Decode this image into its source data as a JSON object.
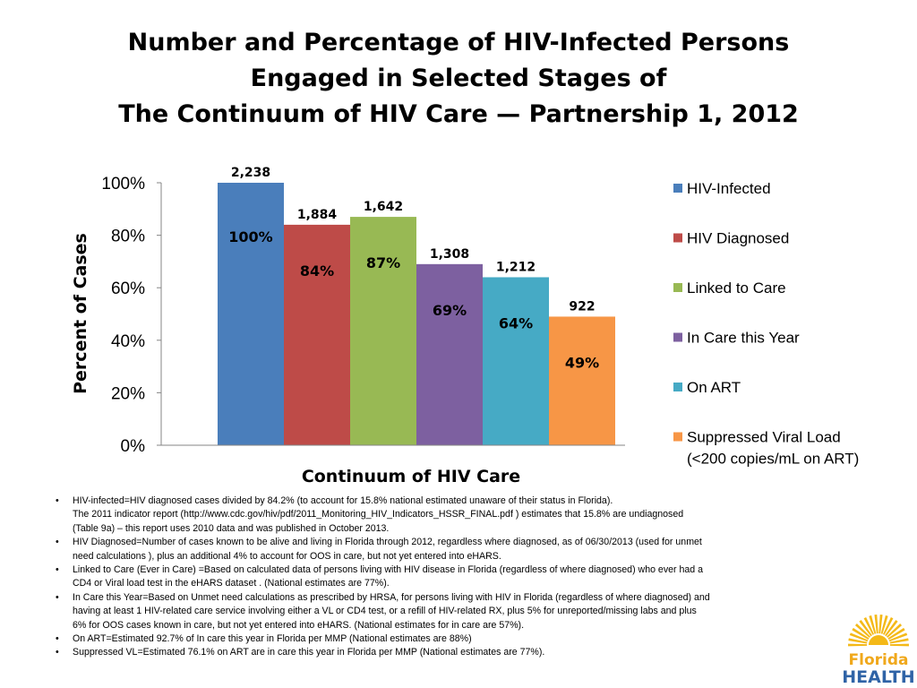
{
  "title_lines": [
    "Number and Percentage of HIV-Infected Persons",
    "Engaged in Selected Stages of",
    "The Continuum of HIV Care — Partnership 1, 2012"
  ],
  "chart_data": {
    "type": "bar",
    "categories": [
      "HIV-Infected",
      "HIV Diagnosed",
      "Linked to Care",
      "In Care this Year",
      "On ART",
      "Suppressed Viral Load (<200 copies/mL on ART)"
    ],
    "legend_labels": [
      [
        "HIV-Infected"
      ],
      [
        "HIV Diagnosed"
      ],
      [
        "Linked to Care"
      ],
      [
        "In Care this Year"
      ],
      [
        "On ART"
      ],
      [
        "Suppressed Viral Load",
        "(<200 copies/mL on ART)"
      ]
    ],
    "values": [
      100,
      84,
      87,
      69,
      64,
      49
    ],
    "value_labels": [
      "100%",
      "84%",
      "87%",
      "69%",
      "64%",
      "49%"
    ],
    "count_labels": [
      "2,238",
      "1,884",
      "1,642",
      "1,308",
      "1,212",
      "922"
    ],
    "colors": [
      "#4a7ebb",
      "#be4b48",
      "#98b954",
      "#7d60a0",
      "#46aac5",
      "#f79646"
    ],
    "xlabel": "Continuum of HIV Care",
    "ylabel": "Percent of Cases",
    "ylim": [
      0,
      100
    ],
    "yticks": [
      "0%",
      "20%",
      "40%",
      "60%",
      "80%",
      "100%"
    ],
    "grid": false,
    "legend_position": "right"
  },
  "notes": [
    [
      "HIV-infected=HIV diagnosed cases divided by 84.2% (to account for 15.8% national estimated unaware of their status in Florida).",
      "The 2011 indicator report (http://www.cdc.gov/hiv/pdf/2011_Monitoring_HIV_Indicators_HSSR_FINAL.pdf ) estimates that 15.8% are undiagnosed",
      "(Table 9a) – this report uses 2010 data and was published in October 2013."
    ],
    [
      "HIV Diagnosed=Number of cases known to be alive and living in Florida through 2012, regardless where diagnosed, as of 06/30/2013 (used for unmet",
      "need calculations ), plus an additional 4% to account for OOS in care, but not yet entered into eHARS."
    ],
    [
      "Linked to Care (Ever in Care) =Based on calculated data of persons living with HIV disease in Florida (regardless of where diagnosed) who ever had a",
      "CD4 or Viral load test in the eHARS dataset .  (National estimates are 77%)."
    ],
    [
      "In Care this Year=Based on Unmet need calculations as prescribed by HRSA, for persons living with HIV in Florida (regardless of where diagnosed) and",
      "having at least 1 HIV-related care service involving either a VL or CD4 test, or a refill of HIV-related RX, plus 5% for unreported/missing labs and plus",
      "6% for OOS cases known in care, but not yet entered into eHARS. (National estimates for in care are 57%)."
    ],
    [
      "On ART=Estimated 92.7% of In care this year in Florida per MMP (National estimates are 88%)"
    ],
    [
      "Suppressed VL=Estimated 76.1% on ART are in care this year in Florida per MMP (National estimates are 77%)."
    ]
  ],
  "logo": {
    "line1": "Florida",
    "line2": "HEALTH",
    "sun_color": "#f4b918",
    "line1_color": "#f0a81b",
    "line2_color": "#2f63a6"
  }
}
